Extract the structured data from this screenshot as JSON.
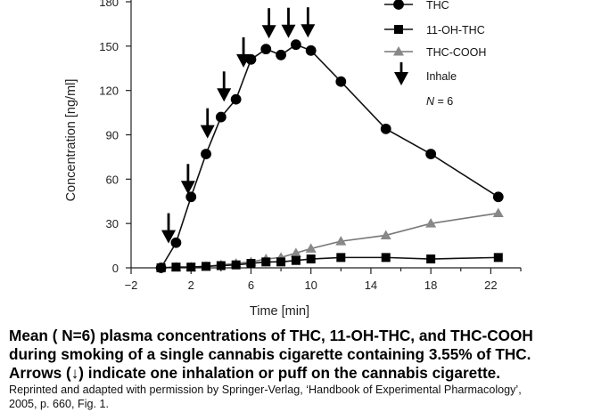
{
  "chart_data": {
    "type": "line",
    "title": "",
    "xlabel": "Time [min]",
    "ylabel": "Concentration [ng/ml]",
    "xlim": [
      -2,
      24
    ],
    "ylim": [
      0,
      180
    ],
    "x_ticks": [
      -2,
      2,
      6,
      10,
      14,
      18,
      22
    ],
    "y_ticks": [
      0,
      30,
      60,
      90,
      120,
      150,
      180
    ],
    "grid": false,
    "legend_position": "top-right",
    "series": [
      {
        "name": "THC",
        "marker": "circle",
        "color": "#000000",
        "points": [
          [
            0,
            0
          ],
          [
            1,
            17
          ],
          [
            2,
            48
          ],
          [
            3,
            77
          ],
          [
            4,
            102
          ],
          [
            5,
            114
          ],
          [
            6,
            141
          ],
          [
            7,
            148
          ],
          [
            8,
            144
          ],
          [
            9,
            151
          ],
          [
            10,
            147
          ],
          [
            12,
            126
          ],
          [
            15,
            94
          ],
          [
            18,
            77
          ],
          [
            22.5,
            48
          ]
        ]
      },
      {
        "name": "11-OH-THC",
        "marker": "square",
        "color": "#000000",
        "points": [
          [
            0,
            0
          ],
          [
            1,
            0.5
          ],
          [
            2,
            0.5
          ],
          [
            3,
            1
          ],
          [
            4,
            1.5
          ],
          [
            5,
            2
          ],
          [
            6,
            3
          ],
          [
            7,
            4
          ],
          [
            8,
            4
          ],
          [
            9,
            5
          ],
          [
            10,
            6
          ],
          [
            12,
            7
          ],
          [
            15,
            7
          ],
          [
            18,
            6
          ],
          [
            22.5,
            7
          ]
        ]
      },
      {
        "name": "THC-COOH",
        "marker": "triangle",
        "color": "#888888",
        "points": [
          [
            0,
            0
          ],
          [
            1,
            0.5
          ],
          [
            2,
            0.5
          ],
          [
            3,
            1
          ],
          [
            4,
            2
          ],
          [
            5,
            3
          ],
          [
            6,
            4
          ],
          [
            7,
            6
          ],
          [
            8,
            7
          ],
          [
            9,
            10
          ],
          [
            10,
            13
          ],
          [
            12,
            18
          ],
          [
            15,
            22
          ],
          [
            18,
            30
          ],
          [
            22.5,
            37
          ]
        ]
      }
    ],
    "inhale_times": [
      0.5,
      1.8,
      3.1,
      4.2,
      5.5,
      7.2,
      8.5,
      9.8
    ],
    "inhale_legend_label": "Inhale",
    "n_label_prefix": "N",
    "n_label_value": "= 6"
  },
  "caption": {
    "line1": "Mean ( N=6)  plasma concentrations of THC, 11-OH-THC, and THC-COOH",
    "line2": "during smoking of a single cannabis cigarette containing 3.55% of THC.",
    "line3": "Arrows (↓) indicate one inhalation or puff on the cannabis cigarette.",
    "credit1": "Reprinted and adapted with permission by Springer-Verlag, ‘Handbook of Experimental Pharmacology’,",
    "credit2": "2005, p. 660, Fig. 1."
  }
}
